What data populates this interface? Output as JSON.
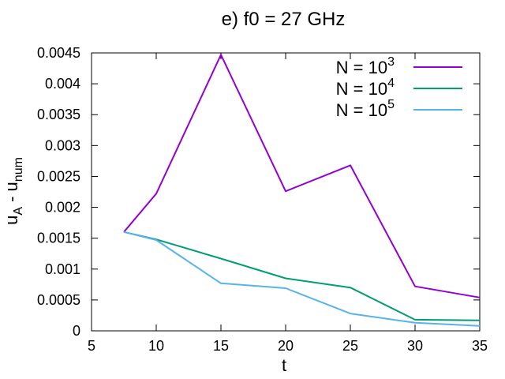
{
  "chart_data": {
    "type": "line",
    "title": "e) f0 = 27 GHz",
    "xlabel": "t",
    "ylabel": {
      "base": "u",
      "sub1": "A",
      "mid": " - u",
      "sub2": "num"
    },
    "xlim": [
      5,
      35
    ],
    "ylim": [
      0,
      0.0045
    ],
    "xticks": [
      "5",
      "10",
      "15",
      "20",
      "25",
      "30",
      "35"
    ],
    "yticks": [
      "0",
      "0.0005",
      "0.001",
      "0.0015",
      "0.002",
      "0.0025",
      "0.003",
      "0.0035",
      "0.004",
      "0.0045"
    ],
    "grid": false,
    "legend_position": "top-right",
    "series": [
      {
        "name": "N = 10^3",
        "label_base": "N = 10",
        "label_exp": "3",
        "color": "#9400d3",
        "x": [
          7.5,
          10,
          15,
          20,
          25,
          30,
          35
        ],
        "y": [
          0.0016,
          0.00222,
          0.00447,
          0.00226,
          0.00268,
          0.00072,
          0.00054
        ]
      },
      {
        "name": "N = 10^4",
        "label_base": "N = 10",
        "label_exp": "4",
        "color": "#009e73",
        "x": [
          7.5,
          10,
          15,
          20,
          25,
          30,
          35
        ],
        "y": [
          0.0016,
          0.00148,
          0.00117,
          0.00085,
          0.0007,
          0.00018,
          0.00017
        ]
      },
      {
        "name": "N = 10^5",
        "label_base": "N = 10",
        "label_exp": "5",
        "color": "#56b4e9",
        "x": [
          7.5,
          10,
          15,
          20,
          25,
          30,
          35
        ],
        "y": [
          0.0016,
          0.00147,
          0.00077,
          0.00069,
          0.00028,
          0.00013,
          8e-05
        ]
      }
    ]
  }
}
